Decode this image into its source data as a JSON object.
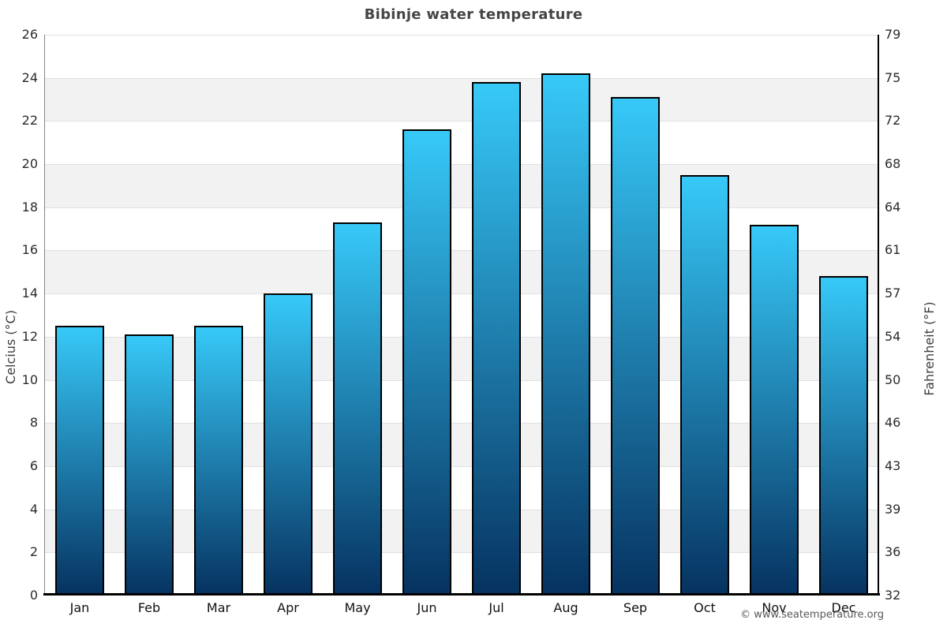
{
  "title": "Bibinje water temperature",
  "footer": {
    "text": "© www.seatemperature.org"
  },
  "axes": {
    "left_label": "Celcius (°C)",
    "right_label": "Fahrenheit (°F)"
  },
  "chart_data": {
    "type": "bar",
    "title": "Bibinje water temperature",
    "categories": [
      "Jan",
      "Feb",
      "Mar",
      "Apr",
      "May",
      "Jun",
      "Jul",
      "Aug",
      "Sep",
      "Oct",
      "Nov",
      "Dec"
    ],
    "values": [
      12.5,
      12.1,
      12.5,
      14.0,
      17.3,
      21.6,
      23.8,
      24.2,
      23.1,
      19.5,
      17.2,
      14.8
    ],
    "xlabel": "",
    "ylabel": "Celcius (°C)",
    "ylabel_right": "Fahrenheit (°F)",
    "ylim": [
      0,
      26
    ],
    "y_tick_step": 2,
    "y_ticks_celsius": [
      0,
      2,
      4,
      6,
      8,
      10,
      12,
      14,
      16,
      18,
      20,
      22,
      24,
      26
    ],
    "y_ticks_fahrenheit": [
      32,
      36,
      39,
      43,
      46,
      50,
      54,
      57,
      61,
      64,
      68,
      72,
      75,
      79
    ],
    "grid": "horizontal gridlines every 2°C with alternating white/gray background bands",
    "legend": "none",
    "colors": {
      "bar_gradient_top": "#37c9f8",
      "bar_gradient_bottom": "#063260",
      "bar_border": "#000000",
      "band_fill": "#f2f2f2",
      "gridline": "#e0e0e0",
      "title_text": "#454545",
      "tick_text": "#2b2b2b",
      "month_text": "#111111",
      "axis_label_text": "#3d3d3d",
      "footer_text": "#56585a"
    }
  }
}
